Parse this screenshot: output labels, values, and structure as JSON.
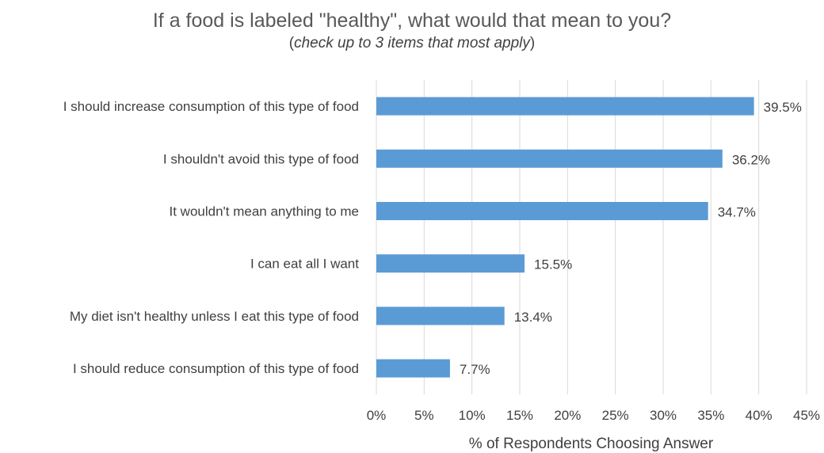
{
  "chart_data": {
    "type": "bar",
    "orientation": "horizontal",
    "title": "If a food is labeled \"healthy\", what would that mean to you?",
    "subtitle_open": "(",
    "subtitle_note": "check up to 3 items that most apply",
    "subtitle_close": ")",
    "xlabel": "% of Respondents Choosing Answer",
    "ylabel": "",
    "xlim": [
      0,
      45
    ],
    "xticks": [
      0,
      5,
      10,
      15,
      20,
      25,
      30,
      35,
      40,
      45
    ],
    "tick_suffix": "%",
    "grid": true,
    "categories": [
      "I should increase consumption of this type of food",
      "I shouldn't avoid this type of food",
      "It wouldn't mean anything to me",
      "I can eat all I want",
      "My diet isn't healthy unless I eat this type of food",
      "I should reduce consumption of this type of food"
    ],
    "values": [
      39.5,
      36.2,
      34.7,
      15.5,
      13.4,
      7.7
    ],
    "data_labels": [
      "39.5%",
      "36.2%",
      "34.7%",
      "15.5%",
      "13.4%",
      "7.7%"
    ],
    "bar_color": "#5b9bd5",
    "grid_color": "#d9d9d9"
  }
}
